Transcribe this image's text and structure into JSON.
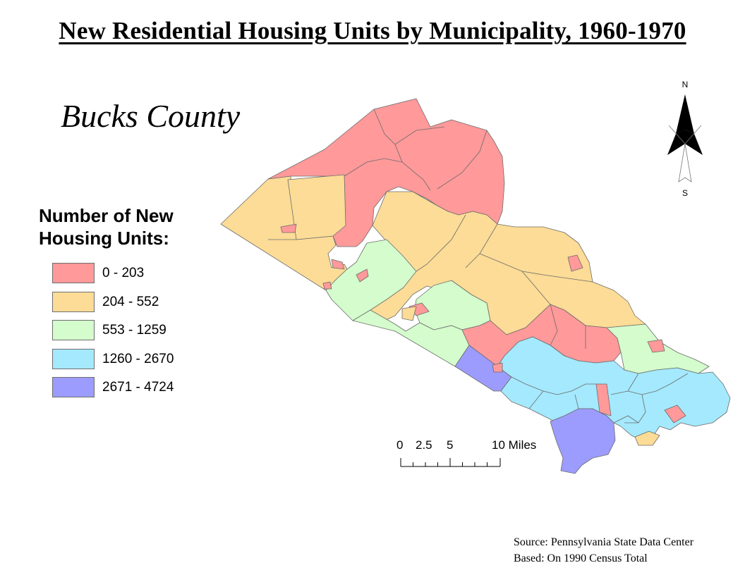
{
  "title": "New Residential Housing Units by Municipality, 1960-1970",
  "subtitle": "Bucks County",
  "legend": {
    "title_line1": "Number of New",
    "title_line2": "Housing Units:",
    "classes": [
      {
        "label": "0 - 203",
        "color": "#ff999a"
      },
      {
        "label": "204 - 552",
        "color": "#fcdc96"
      },
      {
        "label": "553 - 1259",
        "color": "#d4fccc"
      },
      {
        "label": "1260 - 2670",
        "color": "#a4e9fd"
      },
      {
        "label": "2671 - 4724",
        "color": "#9c9cff"
      }
    ]
  },
  "north_arrow": {
    "north_label": "N",
    "south_label": "S"
  },
  "scale_bar": {
    "tick_labels": [
      "0",
      "2.5",
      "5",
      "10 Miles"
    ]
  },
  "source": {
    "line1": "Source: Pennsylvania State Data Center",
    "line2": "Based: On 1990 Census Total"
  }
}
